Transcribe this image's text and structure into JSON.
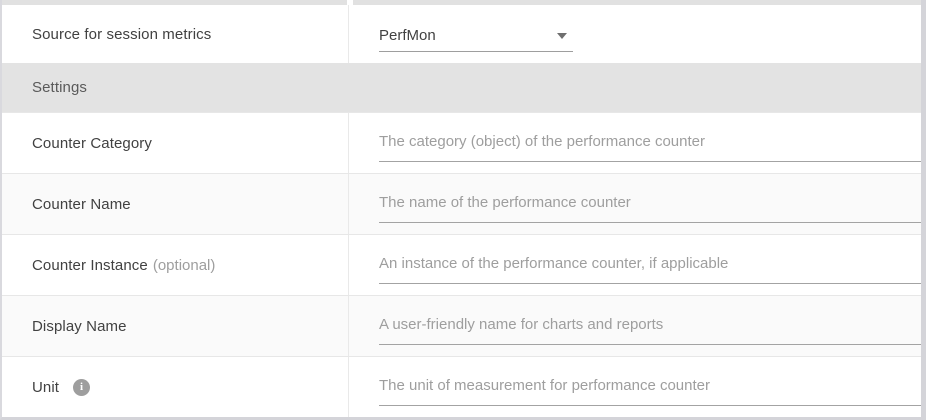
{
  "source_row": {
    "label": "Source for session metrics",
    "value": "PerfMon"
  },
  "section_header": {
    "label": "Settings"
  },
  "fields": [
    {
      "label": "Counter Category",
      "placeholder": "The category (object) of the performance counter"
    },
    {
      "label": "Counter Name",
      "placeholder": "The name of the performance counter"
    },
    {
      "label": "Counter Instance",
      "optional_suffix": "(optional)",
      "placeholder": "An instance of the performance counter, if applicable"
    },
    {
      "label": "Display Name",
      "placeholder": "A user-friendly name for charts and reports"
    },
    {
      "label": "Unit",
      "placeholder": "The unit of measurement for performance counter",
      "info_icon_glyph": "i"
    }
  ],
  "colors": {
    "settings_header_bg": "#e3e3e3",
    "alt_row_bg": "#fafafa",
    "label_text": "#414141",
    "muted_text": "#9e9e9e",
    "input_underline": "#a3a3a3",
    "outer_border": "#d4d4d9"
  }
}
